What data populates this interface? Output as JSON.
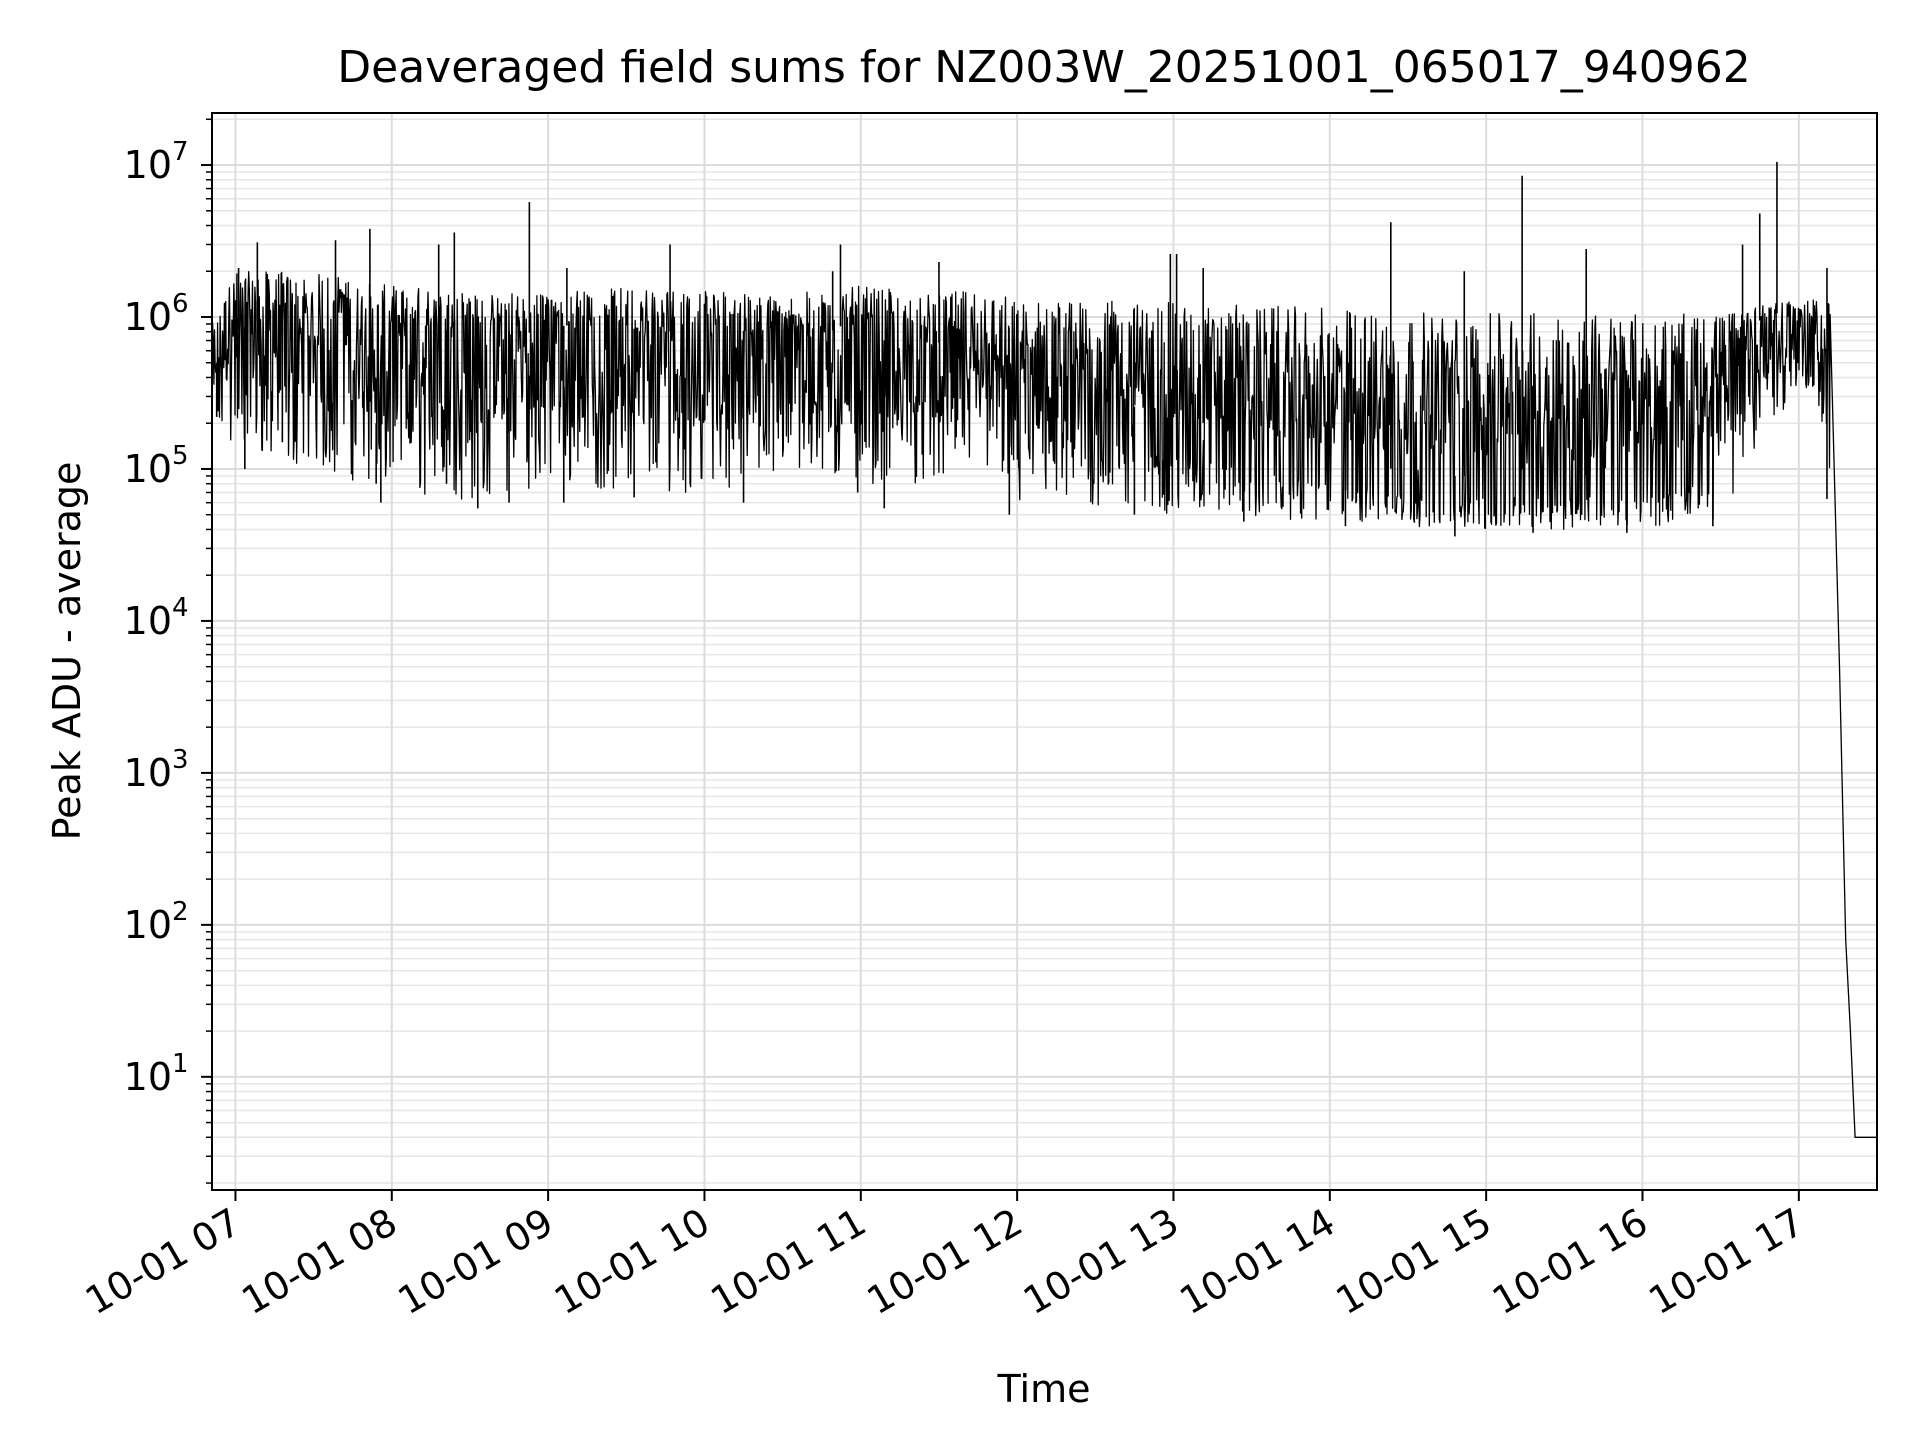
{
  "chart_data": {
    "type": "line",
    "title": "Deaveraged field sums for NZ003W_20251001_065017_940962",
    "xlabel": "Time",
    "ylabel": "Peak ADU - average",
    "yscale": "log",
    "ylim": [
      1.8,
      22000000
    ],
    "xlim_hours": [
      6.85,
      17.5
    ],
    "grid": true,
    "legend": "none",
    "line_color": "#000000",
    "x_ticks": [
      {
        "hour": 7,
        "label": "10-01 07"
      },
      {
        "hour": 8,
        "label": "10-01 08"
      },
      {
        "hour": 9,
        "label": "10-01 09"
      },
      {
        "hour": 10,
        "label": "10-01 10"
      },
      {
        "hour": 11,
        "label": "10-01 11"
      },
      {
        "hour": 12,
        "label": "10-01 12"
      },
      {
        "hour": 13,
        "label": "10-01 13"
      },
      {
        "hour": 14,
        "label": "10-01 14"
      },
      {
        "hour": 15,
        "label": "10-01 15"
      },
      {
        "hour": 16,
        "label": "10-01 16"
      },
      {
        "hour": 17,
        "label": "10-01 17"
      }
    ],
    "y_ticks": [
      {
        "value": 10,
        "exp": "1"
      },
      {
        "value": 100,
        "exp": "2"
      },
      {
        "value": 1000,
        "exp": "3"
      },
      {
        "value": 10000,
        "exp": "4"
      },
      {
        "value": 100000,
        "exp": "5"
      },
      {
        "value": 1000000,
        "exp": "6"
      },
      {
        "value": 10000000,
        "exp": "7"
      }
    ],
    "series": [
      {
        "name": "deaveraged field sum",
        "x_hours": [
          6.85,
          6.9,
          6.95,
          7.0,
          7.1,
          7.2,
          7.3,
          7.4,
          7.5,
          7.6,
          7.7,
          7.8,
          7.85,
          7.9,
          7.95,
          8.0,
          8.1,
          8.2,
          8.3,
          8.4,
          8.5,
          8.6,
          8.7,
          8.8,
          8.9,
          9.0,
          9.2,
          9.4,
          9.6,
          9.8,
          10.0,
          10.2,
          10.4,
          10.6,
          10.8,
          10.9,
          11.0,
          11.2,
          11.4,
          11.6,
          11.8,
          11.9,
          12.0,
          12.2,
          12.4,
          12.6,
          12.8,
          13.0,
          13.2,
          13.4,
          13.6,
          13.8,
          14.0,
          14.2,
          14.4,
          14.6,
          14.8,
          15.0,
          15.2,
          15.4,
          15.6,
          15.8,
          15.9,
          16.0,
          16.1,
          16.2,
          16.3,
          16.35,
          16.4,
          16.45,
          16.5,
          16.55,
          16.6,
          16.7,
          16.8,
          16.9,
          17.0,
          17.1,
          17.2,
          17.26,
          17.3,
          17.33,
          17.36,
          17.38,
          17.4,
          17.42,
          17.45,
          17.5
        ],
        "values": [
          650000,
          420000,
          700000,
          800000,
          900000,
          1000000,
          850000,
          700000,
          650000,
          900000,
          1100000,
          800000,
          300000,
          200000,
          700000,
          900000,
          800000,
          900000,
          800000,
          850000,
          900000,
          800000,
          850000,
          750000,
          800000,
          850000,
          900000,
          800000,
          850000,
          800000,
          900000,
          850000,
          700000,
          750000,
          800000,
          900000,
          400000,
          600000,
          650000,
          700000,
          600000,
          250000,
          300000,
          350000,
          300000,
          280000,
          250000,
          220000,
          200000,
          180000,
          150000,
          130000,
          120000,
          110000,
          100000,
          95000,
          90000,
          90000,
          100000,
          95000,
          90000,
          95000,
          100000,
          100000,
          95000,
          110000,
          120000,
          160000,
          180000,
          250000,
          400000,
          650000,
          800000,
          900000,
          1000000,
          1100000,
          1100000,
          400000,
          40000,
          5000,
          80,
          20,
          4,
          4,
          4,
          4,
          4,
          4
        ]
      }
    ],
    "envelope_hours": [
      6.85,
      7.0,
      7.5,
      8.0,
      8.5,
      9.0,
      9.5,
      10.0,
      10.5,
      11.0,
      11.5,
      11.8,
      12.0,
      12.5,
      13.0,
      13.5,
      14.0,
      14.5,
      15.0,
      15.5,
      16.0,
      16.5,
      16.8,
      17.0,
      17.2
    ],
    "envelope_low": [
      220000,
      120000,
      100000,
      70000,
      60000,
      80000,
      70000,
      70000,
      90000,
      80000,
      80000,
      100000,
      55000,
      55000,
      50000,
      48000,
      45000,
      42000,
      40000,
      40000,
      42000,
      45000,
      200000,
      300000,
      400000
    ],
    "envelope_high": [
      900000,
      2000000,
      2000000,
      1600000,
      1500000,
      1500000,
      1600000,
      1500000,
      1400000,
      1600000,
      1400000,
      1600000,
      1300000,
      1300000,
      1250000,
      1200000,
      1150000,
      1100000,
      1050000,
      1100000,
      1050000,
      1050000,
      1200000,
      1300000,
      1300000
    ],
    "spikes": [
      {
        "hour": 7.02,
        "value": 2100000
      },
      {
        "hour": 7.14,
        "value": 3100000
      },
      {
        "hour": 7.64,
        "value": 3200000
      },
      {
        "hour": 7.86,
        "value": 3800000
      },
      {
        "hour": 8.3,
        "value": 3000000
      },
      {
        "hour": 8.4,
        "value": 3600000
      },
      {
        "hour": 8.88,
        "value": 5700000
      },
      {
        "hour": 9.12,
        "value": 2100000
      },
      {
        "hour": 9.78,
        "value": 3000000
      },
      {
        "hour": 10.82,
        "value": 2000000
      },
      {
        "hour": 10.87,
        "value": 3000000
      },
      {
        "hour": 11.5,
        "value": 2300000
      },
      {
        "hour": 12.98,
        "value": 2600000
      },
      {
        "hour": 13.02,
        "value": 2600000
      },
      {
        "hour": 13.19,
        "value": 2100000
      },
      {
        "hour": 14.39,
        "value": 4200000
      },
      {
        "hour": 14.86,
        "value": 2000000
      },
      {
        "hour": 15.23,
        "value": 8500000
      },
      {
        "hour": 15.64,
        "value": 2800000
      },
      {
        "hour": 16.64,
        "value": 3000000
      },
      {
        "hour": 16.75,
        "value": 4800000
      },
      {
        "hour": 16.86,
        "value": 10500000
      },
      {
        "hour": 17.18,
        "value": 2100000
      }
    ],
    "dips": [
      {
        "hour": 6.88,
        "value": 220000
      },
      {
        "hour": 7.06,
        "value": 100000
      },
      {
        "hour": 7.3,
        "value": 150000
      },
      {
        "hour": 7.9,
        "value": 80000
      },
      {
        "hour": 7.93,
        "value": 60000
      },
      {
        "hour": 8.35,
        "value": 80000
      },
      {
        "hour": 8.55,
        "value": 55000
      },
      {
        "hour": 8.75,
        "value": 60000
      },
      {
        "hour": 9.1,
        "value": 60000
      },
      {
        "hour": 9.55,
        "value": 65000
      },
      {
        "hour": 10.25,
        "value": 60000
      },
      {
        "hour": 10.98,
        "value": 70000
      },
      {
        "hour": 11.15,
        "value": 55000
      },
      {
        "hour": 11.95,
        "value": 50000
      },
      {
        "hour": 12.75,
        "value": 50000
      },
      {
        "hour": 13.45,
        "value": 45000
      },
      {
        "hour": 14.1,
        "value": 42000
      },
      {
        "hour": 14.8,
        "value": 36000
      },
      {
        "hour": 15.3,
        "value": 38000
      },
      {
        "hour": 15.9,
        "value": 38000
      },
      {
        "hour": 16.45,
        "value": 42000
      }
    ]
  }
}
